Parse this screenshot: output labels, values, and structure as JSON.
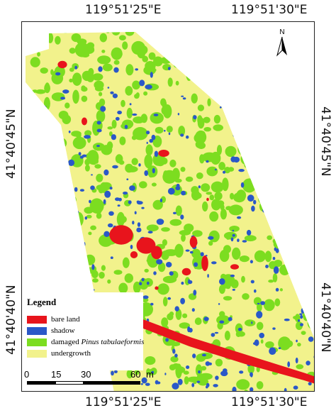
{
  "map": {
    "top_labels": {
      "left": "119°51'25\"E",
      "right": "119°51'30\"E"
    },
    "bottom_labels": {
      "left": "119°51'25\"E",
      "right": "119°51'30\"E"
    },
    "left_labels": {
      "upper": "41°40'45\"N",
      "lower": "41°40'40\"N"
    },
    "right_labels": {
      "upper": "41°40'45\"N",
      "lower": "41°40'40\"N"
    },
    "north_label": "N"
  },
  "legend": {
    "title": "Legend",
    "items": [
      {
        "label": "bare land",
        "color": "#e8141c"
      },
      {
        "label": "shadow",
        "color": "#2a58c8"
      },
      {
        "label_prefix": "damaged ",
        "label_italic": "Pinus tabulaeformis",
        "color": "#7cdd20"
      },
      {
        "label": "undergrowth",
        "color": "#f2f28c"
      }
    ]
  },
  "scalebar": {
    "ticks": [
      "0",
      "15",
      "30",
      "60"
    ],
    "unit": "m"
  },
  "colors": {
    "bare_land": "#e8141c",
    "shadow": "#2a58c8",
    "damaged": "#7cdd20",
    "undergrowth": "#f2f28c"
  }
}
